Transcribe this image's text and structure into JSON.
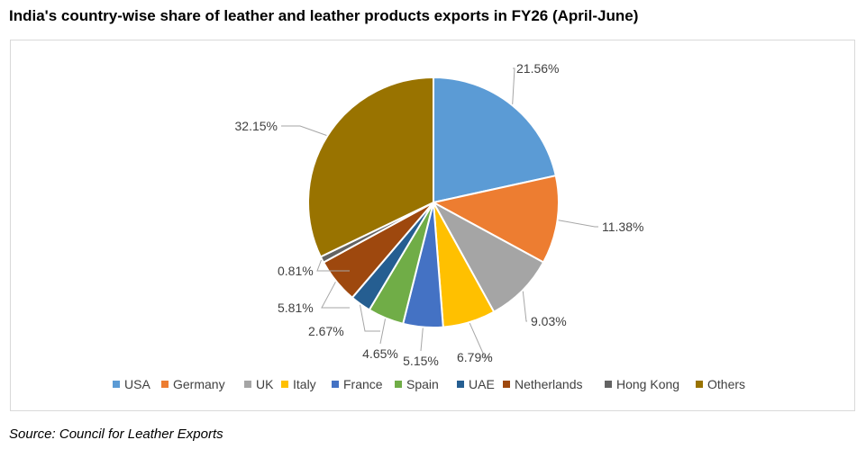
{
  "page": {
    "title": "India's country-wise share of leather and leather products exports in FY26 (April-June)",
    "source": "Source: Council for Leather Exports"
  },
  "chart_data": {
    "type": "pie",
    "title": "India's country-wise share of leather and leather products exports in FY26 (April-June)",
    "categories": [
      "USA",
      "Germany",
      "UK",
      "Italy",
      "France",
      "Spain",
      "UAE",
      "Netherlands",
      "Hong Kong",
      "Others"
    ],
    "values": [
      21.56,
      11.38,
      9.03,
      6.79,
      5.15,
      4.65,
      2.67,
      5.81,
      0.81,
      32.15
    ],
    "labels": [
      "21.56%",
      "11.38%",
      "9.03%",
      "6.79%",
      "5.15%",
      "4.65%",
      "2.67%",
      "5.81%",
      "0.81%",
      "32.15%"
    ],
    "colors": [
      "#5b9bd5",
      "#ed7d31",
      "#a5a5a5",
      "#ffc000",
      "#4472c4",
      "#70ad47",
      "#255e91",
      "#9e480e",
      "#636363",
      "#997300"
    ],
    "start_angle": "12 o'clock",
    "direction": "clockwise",
    "legend_position": "bottom",
    "data_labels": "outside-with-leader-lines"
  }
}
